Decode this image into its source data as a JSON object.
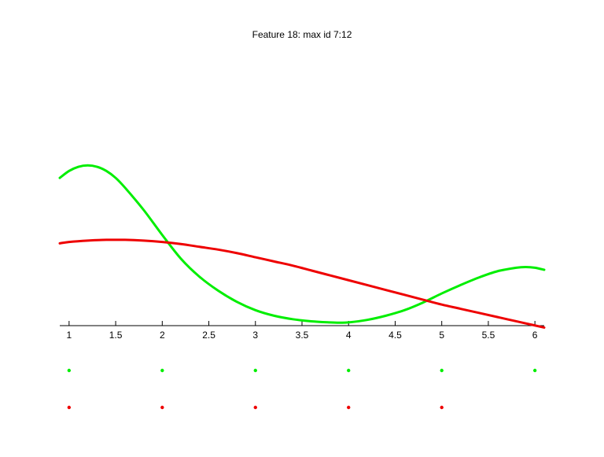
{
  "chart_data": {
    "type": "line",
    "title": "Feature 18: max id 7:12",
    "xlabel": "",
    "ylabel": "",
    "xlim": [
      0.9,
      6.1
    ],
    "ylim": [
      0,
      1.65
    ],
    "x_ticks": [
      1,
      1.5,
      2,
      2.5,
      3,
      3.5,
      4,
      4.5,
      5,
      5.5,
      6
    ],
    "x_tick_labels": [
      "1",
      "1.5",
      "2",
      "2.5",
      "3",
      "3.5",
      "4",
      "4.5",
      "5",
      "5.5",
      "6"
    ],
    "y_axis_visible": false,
    "grid": false,
    "legend": "none",
    "series": [
      {
        "color": "#00ee00",
        "x": [
          0.9,
          1.0,
          1.1,
          1.2,
          1.3,
          1.4,
          1.5,
          1.6,
          1.8,
          2.0,
          2.2,
          2.4,
          2.6,
          2.8,
          3.0,
          3.2,
          3.4,
          3.6,
          3.8,
          3.9,
          4.0,
          4.2,
          4.4,
          4.6,
          4.8,
          5.0,
          5.2,
          5.4,
          5.6,
          5.8,
          5.9,
          6.0,
          6.1
        ],
        "y": [
          1.05,
          1.1,
          1.13,
          1.14,
          1.13,
          1.1,
          1.05,
          0.98,
          0.82,
          0.64,
          0.47,
          0.34,
          0.24,
          0.16,
          0.1,
          0.06,
          0.035,
          0.02,
          0.012,
          0.01,
          0.012,
          0.03,
          0.06,
          0.1,
          0.155,
          0.22,
          0.28,
          0.335,
          0.38,
          0.405,
          0.41,
          0.405,
          0.39
        ]
      },
      {
        "color": "#ee0000",
        "x": [
          0.9,
          1.0,
          1.2,
          1.4,
          1.6,
          1.8,
          2.0,
          2.2,
          2.4,
          2.6,
          2.8,
          3.0,
          3.2,
          3.4,
          3.6,
          3.8,
          4.0,
          4.2,
          4.4,
          4.6,
          4.8,
          5.0,
          5.2,
          5.4,
          5.6,
          5.8,
          6.0,
          6.1
        ],
        "y": [
          0.58,
          0.59,
          0.6,
          0.605,
          0.605,
          0.6,
          0.59,
          0.575,
          0.555,
          0.535,
          0.51,
          0.48,
          0.45,
          0.42,
          0.385,
          0.35,
          0.315,
          0.28,
          0.245,
          0.21,
          0.175,
          0.14,
          0.11,
          0.08,
          0.05,
          0.02,
          -0.01,
          -0.025
        ]
      }
    ],
    "dot_rows": [
      {
        "color": "#00ee00",
        "x": [
          1,
          2,
          3,
          4,
          5,
          6
        ]
      },
      {
        "color": "#ee0000",
        "x": [
          1,
          2,
          3,
          4,
          5
        ]
      }
    ]
  }
}
